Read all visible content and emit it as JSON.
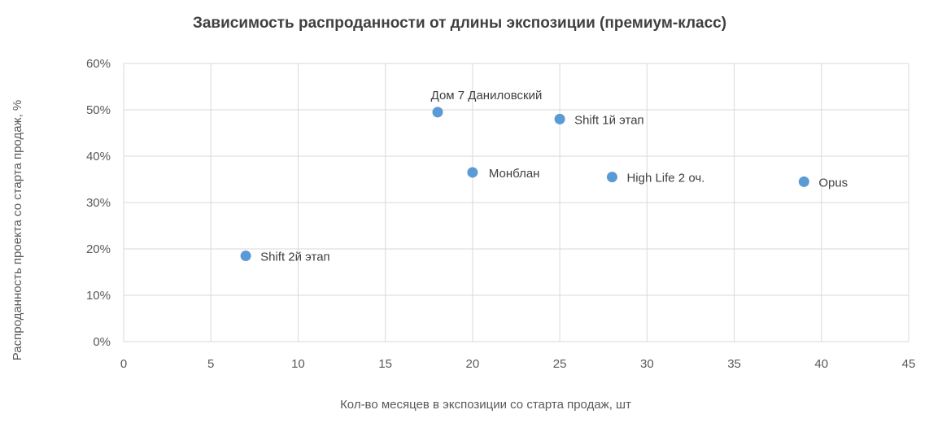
{
  "chart_data": {
    "type": "scatter",
    "title": "Зависимость  распроданности от длины экспозиции (премиум-класс)",
    "xlabel": "Кол-во месяцев в экспозиции со старта продаж, шт",
    "ylabel": "Распроданность проекта со старта продаж, %",
    "xlim": [
      0,
      45
    ],
    "ylim": [
      0,
      60
    ],
    "x_ticks": [
      "0",
      "5",
      "10",
      "15",
      "20",
      "25",
      "30",
      "35",
      "40",
      "45"
    ],
    "y_ticks": [
      "0%",
      "10%",
      "20%",
      "30%",
      "40%",
      "50%",
      "60%"
    ],
    "grid": true,
    "point_color": "#5b9bd5",
    "points": [
      {
        "label": "Shift 2й этап",
        "x": 7,
        "y": 18.5
      },
      {
        "label": "Дом 7 Даниловский",
        "x": 18,
        "y": 49.5
      },
      {
        "label": "Монблан",
        "x": 20,
        "y": 36.5
      },
      {
        "label": "Shift 1й этап",
        "x": 25,
        "y": 48
      },
      {
        "label": "High Life 2 оч.",
        "x": 28,
        "y": 35.5
      },
      {
        "label": "Opus",
        "x": 39,
        "y": 34.5
      }
    ]
  }
}
